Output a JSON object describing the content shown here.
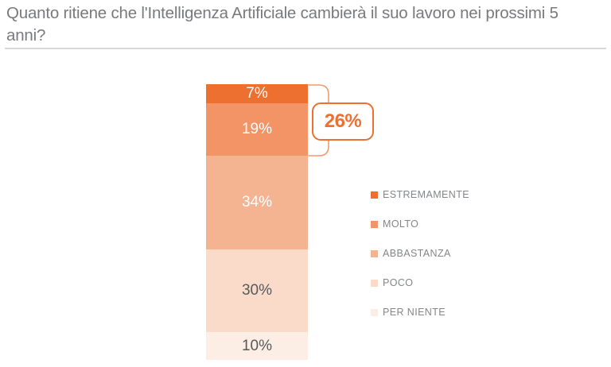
{
  "title": "Quanto ritiene che l'Intelligenza Artificiale cambierà il suo lavoro nei prossimi 5 anni?",
  "colors": {
    "accent": "#ed7031",
    "title_text": "#797a7d",
    "legend_text": "#848689",
    "divider": "#d9d9d9",
    "bracket": "#f09a72",
    "dark_label": "#58595b",
    "light_label": "#ffffff"
  },
  "chart_data": {
    "type": "bar",
    "stacked": true,
    "orientation": "vertical",
    "title": "Quanto ritiene che l'Intelligenza Artificiale cambierà il suo lavoro nei prossimi 5 anni?",
    "categories": [
      "ESTREMAMENTE",
      "MOLTO",
      "ABBASTANZA",
      "POCO",
      "PER NIENTE"
    ],
    "values": [
      7,
      19,
      34,
      30,
      10
    ],
    "data_labels": [
      "7%",
      "19%",
      "34%",
      "30%",
      "10%"
    ],
    "segment_colors": [
      "#ed7031",
      "#f29465",
      "#f5b491",
      "#fadbc9",
      "#fceee5"
    ],
    "label_colors": [
      "#ffffff",
      "#ffffff",
      "#ffffff",
      "#58595b",
      "#58595b"
    ],
    "legend_position": "right",
    "grid": false,
    "annotation": {
      "label": "26%",
      "value": 26,
      "covers": [
        "ESTREMAMENTE",
        "MOLTO"
      ]
    }
  }
}
